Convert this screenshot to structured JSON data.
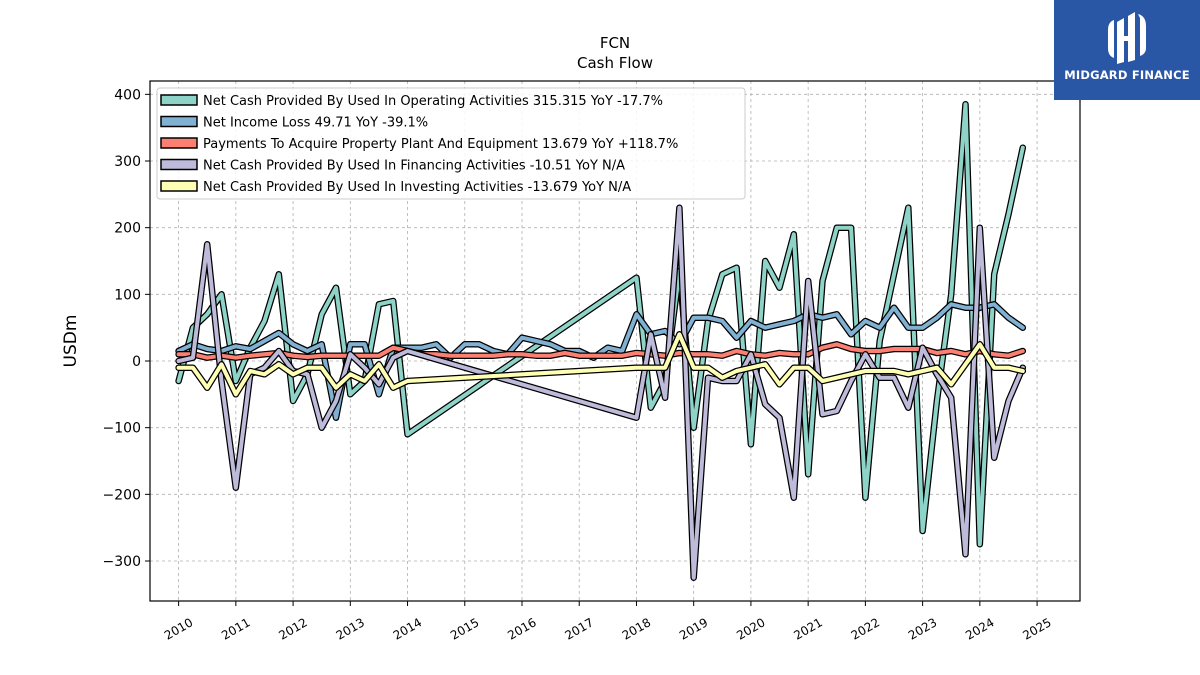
{
  "brand": {
    "name": "MIDGARD FINANCE",
    "bg_color": "#2a56a6"
  },
  "chart_data": {
    "type": "line",
    "title": "FCN",
    "subtitle": "Cash Flow",
    "ylabel": "USDm",
    "xlabel": "",
    "ylim": [
      -360,
      420
    ],
    "xlim": [
      2009.5,
      2025.75
    ],
    "yticks": [
      -300,
      -200,
      -100,
      0,
      100,
      200,
      300,
      400
    ],
    "xticks": [
      2010,
      2011,
      2012,
      2013,
      2014,
      2015,
      2016,
      2017,
      2018,
      2019,
      2020,
      2021,
      2022,
      2023,
      2024,
      2025
    ],
    "grid": true,
    "legend_position": "top-left",
    "series": [
      {
        "name": "Net Cash Provided By Used In Operating Activities",
        "legend_label": "Net Cash Provided By Used In Operating Activities  315.315 YoY -17.7%",
        "color": "#8dd3c7",
        "points": [
          [
            2010.0,
            -30
          ],
          [
            2010.25,
            50
          ],
          [
            2010.5,
            70
          ],
          [
            2010.75,
            100
          ],
          [
            2011.0,
            -30
          ],
          [
            2011.25,
            20
          ],
          [
            2011.5,
            60
          ],
          [
            2011.75,
            130
          ],
          [
            2012.0,
            -60
          ],
          [
            2012.25,
            -20
          ],
          [
            2012.5,
            70
          ],
          [
            2012.75,
            110
          ],
          [
            2013.0,
            -50
          ],
          [
            2013.25,
            -30
          ],
          [
            2013.5,
            85
          ],
          [
            2013.75,
            90
          ],
          [
            2014.0,
            -110
          ],
          [
            2018.0,
            125
          ],
          [
            2018.25,
            -70
          ],
          [
            2018.5,
            -30
          ],
          [
            2018.75,
            135
          ],
          [
            2019.0,
            -100
          ],
          [
            2019.25,
            60
          ],
          [
            2019.5,
            130
          ],
          [
            2019.75,
            140
          ],
          [
            2020.0,
            -125
          ],
          [
            2020.25,
            150
          ],
          [
            2020.5,
            110
          ],
          [
            2020.75,
            190
          ],
          [
            2021.0,
            -170
          ],
          [
            2021.25,
            120
          ],
          [
            2021.5,
            200
          ],
          [
            2021.75,
            200
          ],
          [
            2022.0,
            -205
          ],
          [
            2022.25,
            30
          ],
          [
            2022.5,
            130
          ],
          [
            2022.75,
            230
          ],
          [
            2023.0,
            -255
          ],
          [
            2023.25,
            -60
          ],
          [
            2023.5,
            100
          ],
          [
            2023.75,
            385
          ],
          [
            2024.0,
            -275
          ],
          [
            2024.25,
            130
          ],
          [
            2024.5,
            220
          ],
          [
            2024.75,
            320
          ]
        ]
      },
      {
        "name": "Net Income Loss",
        "legend_label": "Net Income Loss  49.71 YoY -39.1%",
        "color": "#80b1d3",
        "points": [
          [
            2010.0,
            15
          ],
          [
            2010.25,
            25
          ],
          [
            2010.5,
            18
          ],
          [
            2010.75,
            15
          ],
          [
            2011.0,
            22
          ],
          [
            2011.25,
            18
          ],
          [
            2011.5,
            30
          ],
          [
            2011.75,
            42
          ],
          [
            2012.0,
            25
          ],
          [
            2012.25,
            15
          ],
          [
            2012.5,
            25
          ],
          [
            2012.75,
            -85
          ],
          [
            2013.0,
            25
          ],
          [
            2013.25,
            25
          ],
          [
            2013.5,
            -50
          ],
          [
            2013.75,
            20
          ],
          [
            2014.0,
            20
          ],
          [
            2014.25,
            20
          ],
          [
            2014.5,
            25
          ],
          [
            2014.75,
            5
          ],
          [
            2015.0,
            25
          ],
          [
            2015.25,
            25
          ],
          [
            2015.5,
            15
          ],
          [
            2015.75,
            10
          ],
          [
            2016.0,
            35
          ],
          [
            2016.25,
            30
          ],
          [
            2016.5,
            25
          ],
          [
            2016.75,
            15
          ],
          [
            2017.0,
            15
          ],
          [
            2017.25,
            5
          ],
          [
            2017.5,
            20
          ],
          [
            2017.75,
            15
          ],
          [
            2018.0,
            70
          ],
          [
            2018.25,
            40
          ],
          [
            2018.5,
            45
          ],
          [
            2018.75,
            25
          ],
          [
            2019.0,
            65
          ],
          [
            2019.25,
            65
          ],
          [
            2019.5,
            60
          ],
          [
            2019.75,
            35
          ],
          [
            2020.0,
            60
          ],
          [
            2020.25,
            50
          ],
          [
            2020.5,
            55
          ],
          [
            2020.75,
            60
          ],
          [
            2021.0,
            70
          ],
          [
            2021.25,
            65
          ],
          [
            2021.5,
            70
          ],
          [
            2021.75,
            40
          ],
          [
            2022.0,
            60
          ],
          [
            2022.25,
            50
          ],
          [
            2022.5,
            80
          ],
          [
            2022.75,
            50
          ],
          [
            2023.0,
            50
          ],
          [
            2023.25,
            65
          ],
          [
            2023.5,
            85
          ],
          [
            2023.75,
            80
          ],
          [
            2024.0,
            80
          ],
          [
            2024.25,
            85
          ],
          [
            2024.5,
            65
          ],
          [
            2024.75,
            50
          ]
        ]
      },
      {
        "name": "Payments To Acquire Property Plant And Equipment",
        "legend_label": "Payments To Acquire Property Plant And Equipment  13.679 YoY +118.7%",
        "color": "#fb8072",
        "points": [
          [
            2010.0,
            10
          ],
          [
            2010.25,
            10
          ],
          [
            2010.5,
            5
          ],
          [
            2010.75,
            8
          ],
          [
            2011.0,
            5
          ],
          [
            2011.25,
            8
          ],
          [
            2011.5,
            10
          ],
          [
            2011.75,
            12
          ],
          [
            2012.0,
            8
          ],
          [
            2012.25,
            6
          ],
          [
            2012.5,
            8
          ],
          [
            2012.75,
            8
          ],
          [
            2013.0,
            8
          ],
          [
            2013.25,
            8
          ],
          [
            2013.5,
            8
          ],
          [
            2013.75,
            20
          ],
          [
            2014.0,
            15
          ],
          [
            2014.25,
            10
          ],
          [
            2014.5,
            10
          ],
          [
            2014.75,
            8
          ],
          [
            2015.0,
            8
          ],
          [
            2015.25,
            8
          ],
          [
            2015.5,
            8
          ],
          [
            2015.75,
            10
          ],
          [
            2016.0,
            10
          ],
          [
            2016.25,
            8
          ],
          [
            2016.5,
            8
          ],
          [
            2016.75,
            12
          ],
          [
            2017.0,
            8
          ],
          [
            2017.25,
            8
          ],
          [
            2017.5,
            8
          ],
          [
            2017.75,
            8
          ],
          [
            2018.0,
            12
          ],
          [
            2018.25,
            10
          ],
          [
            2018.5,
            8
          ],
          [
            2018.75,
            12
          ],
          [
            2019.0,
            10
          ],
          [
            2019.25,
            10
          ],
          [
            2019.5,
            8
          ],
          [
            2019.75,
            15
          ],
          [
            2020.0,
            10
          ],
          [
            2020.25,
            8
          ],
          [
            2020.5,
            12
          ],
          [
            2020.75,
            10
          ],
          [
            2021.0,
            10
          ],
          [
            2021.25,
            20
          ],
          [
            2021.5,
            25
          ],
          [
            2021.75,
            18
          ],
          [
            2022.0,
            15
          ],
          [
            2022.25,
            15
          ],
          [
            2022.5,
            18
          ],
          [
            2022.75,
            18
          ],
          [
            2023.0,
            18
          ],
          [
            2023.25,
            12
          ],
          [
            2023.5,
            15
          ],
          [
            2023.75,
            10
          ],
          [
            2024.0,
            15
          ],
          [
            2024.25,
            10
          ],
          [
            2024.5,
            8
          ],
          [
            2024.75,
            15
          ]
        ]
      },
      {
        "name": "Net Cash Provided By Used In Financing Activities",
        "legend_label": "Net Cash Provided By Used In Financing Activities  -10.51 YoY N/A",
        "color": "#bebada",
        "points": [
          [
            2010.0,
            0
          ],
          [
            2010.25,
            5
          ],
          [
            2010.5,
            175
          ],
          [
            2010.75,
            -30
          ],
          [
            2011.0,
            -190
          ],
          [
            2011.25,
            -20
          ],
          [
            2011.5,
            -10
          ],
          [
            2011.75,
            15
          ],
          [
            2012.0,
            -15
          ],
          [
            2012.25,
            -20
          ],
          [
            2012.5,
            -100
          ],
          [
            2012.75,
            -60
          ],
          [
            2013.0,
            10
          ],
          [
            2013.25,
            -10
          ],
          [
            2013.5,
            -35
          ],
          [
            2013.75,
            5
          ],
          [
            2014.0,
            15
          ],
          [
            2018.0,
            -85
          ],
          [
            2018.25,
            40
          ],
          [
            2018.5,
            -55
          ],
          [
            2018.75,
            230
          ],
          [
            2019.0,
            -325
          ],
          [
            2019.25,
            -25
          ],
          [
            2019.5,
            -30
          ],
          [
            2019.75,
            -30
          ],
          [
            2020.0,
            10
          ],
          [
            2020.25,
            -65
          ],
          [
            2020.5,
            -85
          ],
          [
            2020.75,
            -205
          ],
          [
            2021.0,
            120
          ],
          [
            2021.25,
            -80
          ],
          [
            2021.5,
            -75
          ],
          [
            2021.75,
            -30
          ],
          [
            2022.0,
            10
          ],
          [
            2022.25,
            -25
          ],
          [
            2022.5,
            -25
          ],
          [
            2022.75,
            -70
          ],
          [
            2023.0,
            20
          ],
          [
            2023.25,
            -20
          ],
          [
            2023.5,
            -55
          ],
          [
            2023.75,
            -290
          ],
          [
            2024.0,
            200
          ],
          [
            2024.25,
            -145
          ],
          [
            2024.5,
            -60
          ],
          [
            2024.75,
            -10
          ]
        ]
      },
      {
        "name": "Net Cash Provided By Used In Investing Activities",
        "legend_label": "Net Cash Provided By Used In Investing Activities  -13.679 YoY N/A",
        "color": "#ffffb3",
        "points": [
          [
            2010.0,
            -10
          ],
          [
            2010.25,
            -10
          ],
          [
            2010.5,
            -40
          ],
          [
            2010.75,
            -5
          ],
          [
            2011.0,
            -50
          ],
          [
            2011.25,
            -15
          ],
          [
            2011.5,
            -20
          ],
          [
            2011.75,
            -5
          ],
          [
            2012.0,
            -20
          ],
          [
            2012.25,
            -10
          ],
          [
            2012.5,
            -10
          ],
          [
            2012.75,
            -40
          ],
          [
            2013.0,
            -20
          ],
          [
            2013.25,
            -30
          ],
          [
            2013.5,
            -5
          ],
          [
            2013.75,
            -40
          ],
          [
            2014.0,
            -30
          ],
          [
            2018.0,
            -10
          ],
          [
            2018.25,
            -10
          ],
          [
            2018.5,
            -10
          ],
          [
            2018.75,
            40
          ],
          [
            2019.0,
            -10
          ],
          [
            2019.25,
            -10
          ],
          [
            2019.5,
            -25
          ],
          [
            2019.75,
            -15
          ],
          [
            2020.0,
            -10
          ],
          [
            2020.25,
            -5
          ],
          [
            2020.5,
            -35
          ],
          [
            2020.75,
            -10
          ],
          [
            2021.0,
            -10
          ],
          [
            2021.25,
            -30
          ],
          [
            2021.5,
            -25
          ],
          [
            2021.75,
            -20
          ],
          [
            2022.0,
            -15
          ],
          [
            2022.25,
            -15
          ],
          [
            2022.5,
            -15
          ],
          [
            2022.75,
            -20
          ],
          [
            2023.0,
            -15
          ],
          [
            2023.25,
            -10
          ],
          [
            2023.5,
            -35
          ],
          [
            2023.75,
            -5
          ],
          [
            2024.0,
            25
          ],
          [
            2024.25,
            -10
          ],
          [
            2024.5,
            -10
          ],
          [
            2024.75,
            -15
          ]
        ]
      }
    ]
  }
}
